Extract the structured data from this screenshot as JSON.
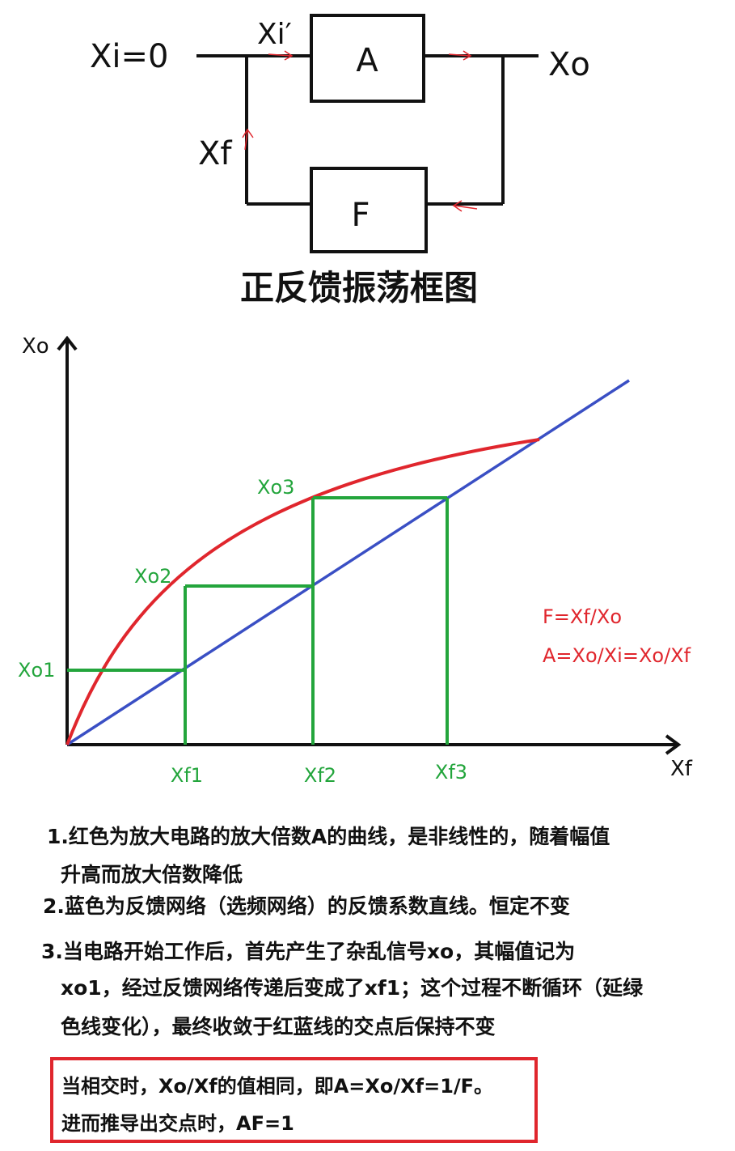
{
  "block_diagram": {
    "input_label": "Xi=0",
    "input_after_node_label": "Xi′",
    "amplifier_label": "A",
    "output_label": "Xo",
    "feedback_signal_label": "Xf",
    "feedback_network_label": "F",
    "caption": "正反馈振荡框图"
  },
  "chart_data": {
    "type": "line",
    "xlabel": "Xf",
    "ylabel": "Xo",
    "series": [
      {
        "color": "#e0262d",
        "shape": "concave-curve"
      },
      {
        "color": "#3a4fc4",
        "shape": "straight-line"
      }
    ],
    "step_color": "#23a53c",
    "x_marks": [
      "Xf1",
      "Xf2",
      "Xf3"
    ],
    "y_marks": [
      "Xo1",
      "Xo2",
      "Xo3"
    ],
    "annotations": [
      "F=Xf/Xo",
      "A=Xo/Xi=Xo/Xf"
    ],
    "annotation_color": "#e0262d",
    "grid": false
  },
  "notes": [
    "1.红色为放大电路的放大倍数A的曲线，是非线性的，随着幅值",
    "升高而放大倍数降低",
    "2.蓝色为反馈网络（选频网络）的反馈系数直线。恒定不变",
    "3.当电路开始工作后，首先产生了杂乱信号xo，其幅值记为",
    "xo1，经过反馈网络传递后变成了xf1；这个过程不断循环（延绿",
    "色线变化），最终收敛于红蓝线的交点后保持不变"
  ],
  "conclusion": [
    "当相交时，Xo/Xf的值相同，即A=Xo/Xf=1/F。",
    "进而推导出交点时，AF=1"
  ]
}
